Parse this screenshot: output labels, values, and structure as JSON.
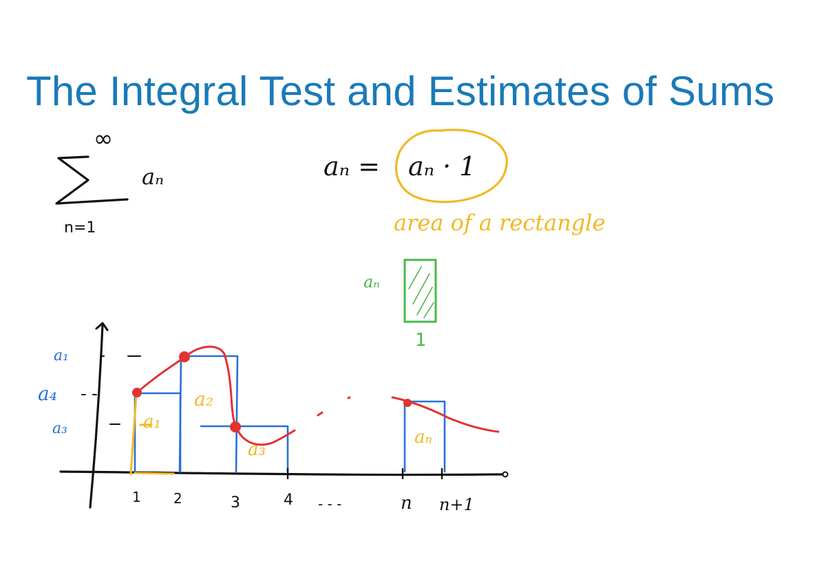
{
  "title": "The Integral Test and Estimates of Sums",
  "colors": {
    "title": "#1a7ab8",
    "ink": "#111111",
    "yellow": "#f2b824",
    "green": "#49b94a",
    "blue": "#2a6fd6",
    "red": "#e23232"
  },
  "sum": {
    "upper": "∞",
    "symbol": "∑",
    "term": "aₙ",
    "lower": "n=1"
  },
  "identity": {
    "lhs": "aₙ =",
    "rhs": "aₙ · 1",
    "note": "area of a rectangle"
  },
  "unit_rect": {
    "height_label": "aₙ",
    "width_label": "1"
  },
  "graph": {
    "y_labels": [
      "a₁",
      "a₄",
      "a₃"
    ],
    "x_labels": [
      "1",
      "2",
      "3",
      "4",
      "- - -",
      "n",
      "n+1"
    ],
    "rect_labels": [
      "a₁",
      "a₂",
      "a₃",
      "aₙ"
    ]
  }
}
